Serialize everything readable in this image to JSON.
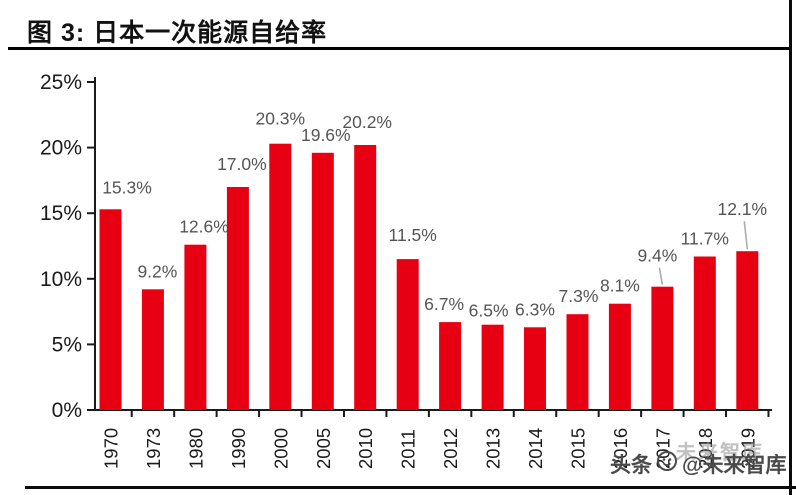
{
  "page": {
    "figure_label": "图 3: 日本一次能源自给率",
    "watermark": {
      "prefix": "头条",
      "handle": "@未来智库",
      "ghost": "未来智库"
    }
  },
  "chart_data": {
    "type": "bar",
    "title": "日本一次能源自给率",
    "categories": [
      "1970",
      "1973",
      "1980",
      "1990",
      "2000",
      "2005",
      "2010",
      "2011",
      "2012",
      "2013",
      "2014",
      "2015",
      "2016",
      "2017",
      "2018",
      "2019"
    ],
    "values": [
      15.3,
      9.2,
      12.6,
      17.0,
      20.3,
      19.6,
      20.2,
      11.5,
      6.7,
      6.5,
      6.3,
      7.3,
      8.1,
      9.4,
      11.7,
      12.1
    ],
    "value_labels": [
      "15.3%",
      "9.2%",
      "12.6%",
      "17.0%",
      "20.3%",
      "19.6%",
      "20.2%",
      "11.5%",
      "6.7%",
      "6.5%",
      "6.3%",
      "7.3%",
      "8.1%",
      "9.4%",
      "11.7%",
      "12.1%"
    ],
    "unit": "%",
    "xlabel": "",
    "ylabel": "",
    "ylim": [
      0,
      25
    ],
    "ytick_step": 5,
    "ytick_labels": [
      "0%",
      "5%",
      "10%",
      "15%",
      "20%",
      "25%"
    ],
    "grid": false,
    "legend": "none",
    "callout_years": [
      "2017",
      "2019"
    ],
    "bar_color": "#e60012",
    "value_label_color": "#555555",
    "axis_label_color": "#1a1a1a",
    "axis_line_color": "#1a1a1a",
    "leader_line_color": "#ababab"
  }
}
